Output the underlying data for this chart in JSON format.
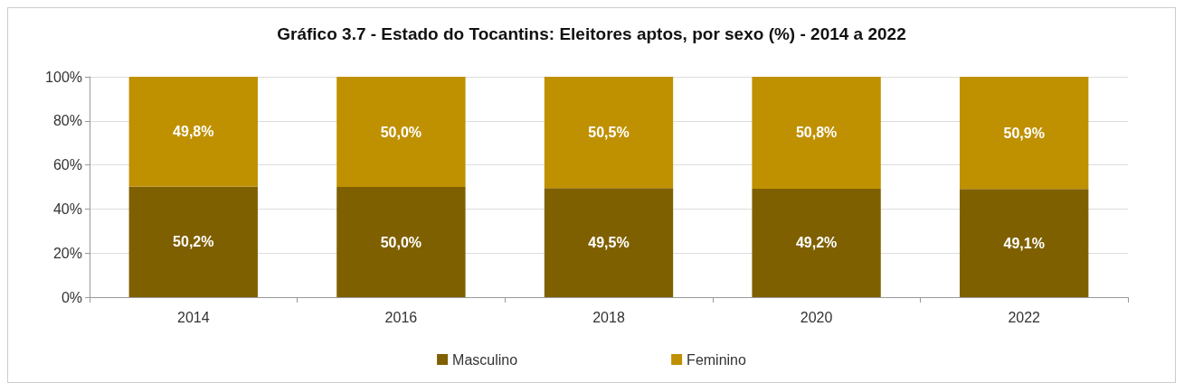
{
  "chart_data": {
    "type": "bar",
    "title": "Gráfico 3.7 - Estado do Tocantins: Eleitores aptos, por sexo (%) - 2014 a 2022",
    "categories": [
      "2014",
      "2016",
      "2018",
      "2020",
      "2022"
    ],
    "stacked": true,
    "series": [
      {
        "name": "Masculino",
        "color": "#7f6000",
        "values": [
          50.2,
          50.0,
          49.5,
          49.2,
          49.1
        ],
        "value_labels": [
          "50,2%",
          "50,0%",
          "49,5%",
          "49,2%",
          "49,1%"
        ]
      },
      {
        "name": "Feminino",
        "color": "#bf9000",
        "values": [
          49.8,
          50.0,
          50.5,
          50.8,
          50.9
        ],
        "value_labels": [
          "49,8%",
          "50,0%",
          "50,5%",
          "50,8%",
          "50,9%"
        ]
      }
    ],
    "ylim": [
      0,
      100
    ],
    "yticks": [
      {
        "value": 0,
        "label": "0%"
      },
      {
        "value": 20,
        "label": "20%"
      },
      {
        "value": 40,
        "label": "40%"
      },
      {
        "value": 60,
        "label": "60%"
      },
      {
        "value": 80,
        "label": "80%"
      },
      {
        "value": 100,
        "label": "100%"
      }
    ],
    "grid": "y",
    "legend": "bottom"
  }
}
